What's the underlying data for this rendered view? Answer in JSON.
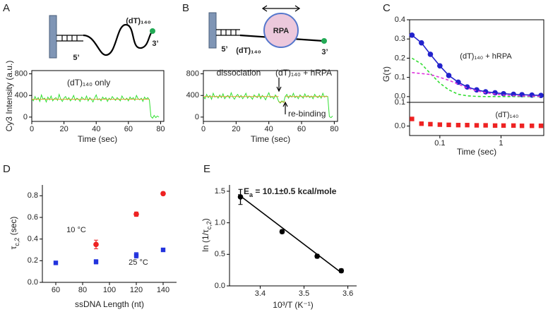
{
  "chart_data": [
    {
      "panel": "A",
      "type": "line",
      "schematic_labels": [
        "(dT)₁₄₀",
        "5’",
        "3’"
      ],
      "annotations": [
        "(dT)₁₄₀ only"
      ],
      "y_label": "Cy3 Intensity (a.u.)",
      "x_label": "Time (sec)",
      "xlim": [
        0,
        82
      ],
      "xticks": [
        0,
        20,
        40,
        60,
        80
      ],
      "ylim": [
        -80,
        860
      ],
      "yticks": [
        0,
        400,
        800
      ],
      "x": [
        0,
        1,
        2,
        3,
        4,
        5,
        6,
        7,
        8,
        9,
        10,
        11,
        12,
        13,
        14,
        15,
        16,
        17,
        18,
        19,
        20,
        21,
        22,
        23,
        24,
        25,
        26,
        27,
        28,
        29,
        30,
        31,
        32,
        33,
        34,
        35,
        36,
        37,
        38,
        39,
        40,
        41,
        42,
        43,
        44,
        45,
        46,
        47,
        48,
        49,
        50,
        51,
        52,
        53,
        54,
        55,
        56,
        57,
        58,
        59,
        60,
        61,
        62,
        63,
        64,
        65,
        66,
        67,
        68,
        69,
        70,
        71,
        72,
        73,
        74,
        75,
        76,
        77,
        78,
        79
      ],
      "series": [
        {
          "color": "#33e033",
          "values": [
            340,
            300,
            380,
            320,
            360,
            290,
            410,
            330,
            350,
            280,
            370,
            320,
            390,
            300,
            340,
            360,
            310,
            420,
            330,
            290,
            350,
            380,
            320,
            360,
            300,
            340,
            400,
            310,
            350,
            330,
            290,
            370,
            340,
            320,
            390,
            300,
            360,
            330,
            280,
            350,
            410,
            320,
            340,
            300,
            370,
            330,
            360,
            290,
            350,
            320,
            380,
            340,
            310,
            360,
            330,
            300,
            390,
            340,
            320,
            350,
            300,
            370,
            330,
            360,
            310,
            400,
            340,
            320,
            350,
            290,
            370,
            330,
            360,
            320,
            10,
            -20,
            30,
            -10,
            20,
            0
          ]
        },
        {
          "color": "#e0a030",
          "x": [
            0,
            73
          ],
          "values": [
            330,
            330
          ]
        }
      ]
    },
    {
      "panel": "B",
      "type": "line",
      "schematic_labels": [
        "RPA",
        "(dT)₁₄₀",
        "5’",
        "3’"
      ],
      "annotations": [
        "dissociation",
        "(dT)₁₄₀ + hRPA",
        "re-binding"
      ],
      "x_label": "Time (sec)",
      "xlim": [
        0,
        82
      ],
      "xticks": [
        0,
        20,
        40,
        60,
        80
      ],
      "ylim": [
        -80,
        860
      ],
      "yticks": [
        0,
        400,
        800
      ],
      "x": [
        0,
        1,
        2,
        3,
        4,
        5,
        6,
        7,
        8,
        9,
        10,
        11,
        12,
        13,
        14,
        15,
        16,
        17,
        18,
        19,
        20,
        21,
        22,
        23,
        24,
        25,
        26,
        27,
        28,
        29,
        30,
        31,
        32,
        33,
        34,
        35,
        36,
        37,
        38,
        39,
        40,
        41,
        42,
        43,
        44,
        45,
        46,
        47,
        48,
        49,
        50,
        51,
        52,
        53,
        54,
        55,
        56,
        57,
        58,
        59,
        60,
        61,
        62,
        63,
        64,
        65,
        66,
        67,
        68,
        69,
        70,
        71,
        72,
        73,
        74,
        75,
        76,
        77,
        78,
        79
      ],
      "series": [
        {
          "color": "#33e033",
          "values": [
            380,
            340,
            420,
            360,
            400,
            330,
            440,
            370,
            390,
            350,
            410,
            360,
            430,
            340,
            380,
            400,
            350,
            450,
            370,
            330,
            390,
            420,
            360,
            400,
            340,
            380,
            440,
            350,
            390,
            370,
            330,
            410,
            380,
            360,
            430,
            340,
            400,
            370,
            320,
            390,
            450,
            360,
            380,
            340,
            410,
            370,
            290,
            260,
            300,
            270,
            380,
            420,
            350,
            400,
            370,
            440,
            360,
            390,
            340,
            410,
            380,
            350,
            430,
            370,
            400,
            360,
            390,
            340,
            420,
            380,
            360,
            400,
            350,
            440,
            370,
            390,
            380,
            10,
            -10,
            20
          ]
        },
        {
          "color": "#e0a030",
          "x": [
            0,
            46,
            46,
            46,
            50,
            50,
            50,
            76
          ],
          "values": [
            380,
            380,
            null,
            280,
            280,
            null,
            380,
            380
          ]
        }
      ]
    },
    {
      "panel": "C",
      "type": "line",
      "y_label": "G(τ)",
      "xlog": true,
      "xlim": [
        0.032,
        5
      ],
      "ylim": [
        -0.03,
        0.4
      ],
      "yticks": [
        {
          "value": 0,
          "label": "0.0"
        },
        0.1,
        0.2,
        0.3,
        0.4
      ],
      "x": [
        0.035,
        0.05,
        0.07,
        0.1,
        0.14,
        0.2,
        0.28,
        0.4,
        0.56,
        0.8,
        1.1,
        1.6,
        2.2,
        3.2,
        4.5
      ],
      "series": [
        {
          "name": "(dT)₁₄₀ + hRPA",
          "color": "#2222cc",
          "mode": "lines+markers",
          "marker": "circle",
          "values": [
            0.32,
            0.28,
            0.22,
            0.16,
            0.11,
            0.075,
            0.05,
            0.035,
            0.025,
            0.02,
            0.015,
            0.012,
            0.01,
            0.008,
            0.006
          ]
        },
        {
          "color": "#33dd33",
          "dash": true,
          "values": [
            0.2,
            0.17,
            0.12,
            0.07,
            0.035,
            0.012,
            0.004,
            0.001,
            0,
            0,
            0,
            0,
            0,
            0,
            0
          ]
        },
        {
          "color": "#dd33dd",
          "dash": true,
          "values": [
            0.125,
            0.12,
            0.115,
            0.1,
            0.085,
            0.065,
            0.045,
            0.03,
            0.02,
            0.013,
            0.008,
            0.005,
            0.003,
            0.002,
            0.001
          ]
        }
      ]
    },
    {
      "type": "scatter",
      "xlog": true,
      "x_label": "Time (sec)",
      "xlim": [
        0.032,
        5
      ],
      "xticks": [
        0.1,
        1
      ],
      "ylim": [
        -0.04,
        0.1
      ],
      "yticks": [
        {
          "value": 0,
          "label": "0.0"
        },
        0.1
      ],
      "x": [
        0.035,
        0.05,
        0.07,
        0.1,
        0.14,
        0.2,
        0.28,
        0.4,
        0.56,
        0.8,
        1.1,
        1.6,
        2.2,
        3.2,
        4.5
      ],
      "series": [
        {
          "name": "(dT)₁₄₀",
          "color": "#ee2222",
          "marker": "square",
          "values": [
            0.03,
            0.01,
            0.008,
            0.006,
            0.005,
            0.004,
            0.004,
            0.003,
            0.003,
            0.002,
            0.002,
            0.002,
            0.001,
            0.001,
            0.001
          ]
        }
      ]
    },
    {
      "panel": "D",
      "type": "scatter",
      "y_label": [
        "τ",
        "c,2",
        " (sec)"
      ],
      "x_label": "ssDNA Length (nt)",
      "xlim": [
        50,
        150
      ],
      "xticks": [
        60,
        80,
        100,
        120,
        140
      ],
      "ylim": [
        0,
        0.9
      ],
      "yticks": [
        {
          "value": 0,
          "label": "0.0"
        },
        0.2,
        0.4,
        0.6,
        0.8
      ],
      "series": [
        {
          "name": "10 °C",
          "color": "#ee2222",
          "marker": "circle",
          "x": [
            90,
            120,
            140
          ],
          "values": [
            0.35,
            0.63,
            0.82
          ],
          "errors": [
            0.04,
            0.02,
            0.015
          ]
        },
        {
          "name": "25 °C",
          "color": "#2233dd",
          "marker": "square",
          "x": [
            60,
            90,
            120,
            140
          ],
          "values": [
            0.18,
            0.19,
            0.25,
            0.3
          ],
          "errors": [
            0.015,
            0.02,
            0.025,
            0.015
          ]
        }
      ]
    },
    {
      "panel": "E",
      "type": "scatter",
      "y_label": [
        "ln (1/τ",
        "c,2",
        ")"
      ],
      "x_label": "10³/T (K⁻¹)",
      "annotations": [
        [
          "E",
          "a",
          " = 10.1±0.5 kcal/mole"
        ]
      ],
      "xlim": [
        3.33,
        3.62
      ],
      "xticks": [
        3.4,
        3.5,
        3.6
      ],
      "ylim": [
        0,
        1.6
      ],
      "yticks": [
        {
          "value": 0,
          "label": "0.0"
        },
        0.5,
        {
          "value": 1,
          "label": "1.0"
        },
        1.5
      ],
      "series": [
        {
          "color": "#000000",
          "marker": "circle",
          "x": [
            3.355,
            3.45,
            3.53,
            3.585
          ],
          "values": [
            1.41,
            0.86,
            0.47,
            0.24
          ],
          "errors": [
            0.12,
            0.03,
            0.03,
            0.03
          ]
        },
        {
          "color": "#000000",
          "mode": "lines",
          "x": [
            3.35,
            3.585
          ],
          "values": [
            1.45,
            0.21
          ]
        }
      ]
    }
  ]
}
